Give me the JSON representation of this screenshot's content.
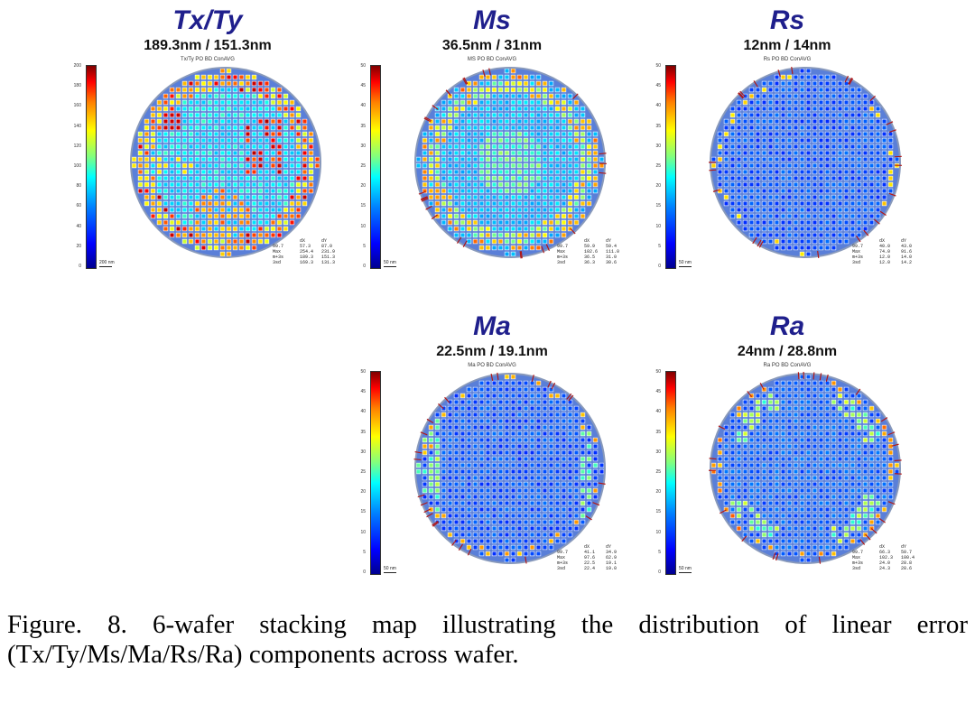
{
  "panels": [
    {
      "id": "txty",
      "title": "Tx/Ty",
      "subtitle": "189.3nm / 151.3nm",
      "header": "Tx/Ty PO BD ConAVG",
      "scale_max": 200,
      "colorbar_ticks": [
        "200",
        "180",
        "160",
        "140",
        "120",
        "100",
        "80",
        "60",
        "40",
        "20",
        "0"
      ],
      "scale_label": "200 nm",
      "stats": {
        "cols": [
          "",
          "dX",
          "dY"
        ],
        "rows": [
          [
            "99.7",
            "57.3",
            "87.0"
          ],
          [
            "Max",
            "254.4",
            "231.9"
          ],
          [
            "m+3s",
            "189.3",
            "151.3"
          ],
          [
            "3sd",
            "169.3",
            "131.3"
          ]
        ]
      }
    },
    {
      "id": "ms",
      "title": "Ms",
      "subtitle": "36.5nm / 31nm",
      "header": "MS PO BD ConAVG",
      "scale_max": 50,
      "colorbar_ticks": [
        "50",
        "45",
        "40",
        "35",
        "30",
        "25",
        "20",
        "15",
        "10",
        "5",
        "0"
      ],
      "scale_label": "50 nm",
      "stats": {
        "cols": [
          "",
          "dX",
          "dY"
        ],
        "rows": [
          [
            "99.7",
            "59.9",
            "59.4"
          ],
          [
            "Max",
            "102.6",
            "111.0"
          ],
          [
            "m+3s",
            "36.5",
            "31.0"
          ],
          [
            "3sd",
            "36.3",
            "30.6"
          ]
        ]
      }
    },
    {
      "id": "rs",
      "title": "Rs",
      "subtitle": "12nm / 14nm",
      "header": "Rs PO BD ConAVG",
      "scale_max": 50,
      "colorbar_ticks": [
        "50",
        "45",
        "40",
        "35",
        "30",
        "25",
        "20",
        "15",
        "10",
        "5",
        "0"
      ],
      "scale_label": "50 nm",
      "stats": {
        "cols": [
          "",
          "dX",
          "dY"
        ],
        "rows": [
          [
            "99.7",
            "40.0",
            "43.0"
          ],
          [
            "Max",
            "74.0",
            "91.6"
          ],
          [
            "m+3s",
            "12.0",
            "14.0"
          ],
          [
            "3sd",
            "12.0",
            "14.2"
          ]
        ]
      }
    },
    {
      "id": "ma",
      "title": "Ma",
      "subtitle": "22.5nm / 19.1nm",
      "header": "Ma PO BD ConAVG",
      "scale_max": 50,
      "colorbar_ticks": [
        "50",
        "45",
        "40",
        "35",
        "30",
        "25",
        "20",
        "15",
        "10",
        "5",
        "0"
      ],
      "scale_label": "50 nm",
      "stats": {
        "cols": [
          "",
          "dX",
          "dY"
        ],
        "rows": [
          [
            "99.7",
            "41.1",
            "34.9"
          ],
          [
            "Max",
            "97.6",
            "62.9"
          ],
          [
            "m+3s",
            "22.5",
            "19.1"
          ],
          [
            "3sd",
            "22.4",
            "19.0"
          ]
        ]
      }
    },
    {
      "id": "ra",
      "title": "Ra",
      "subtitle": "24nm / 28.8nm",
      "header": "Ra PO BD ConAVG",
      "scale_max": 50,
      "colorbar_ticks": [
        "50",
        "45",
        "40",
        "35",
        "30",
        "25",
        "20",
        "15",
        "10",
        "5",
        "0"
      ],
      "scale_label": "50 nm",
      "stats": {
        "cols": [
          "",
          "dX",
          "dY"
        ],
        "rows": [
          [
            "99.7",
            "66.3",
            "50.7"
          ],
          [
            "Max",
            "102.3",
            "100.4"
          ],
          [
            "m+3s",
            "24.0",
            "28.8"
          ],
          [
            "3sd",
            "24.3",
            "28.6"
          ]
        ]
      }
    }
  ],
  "caption": "Figure. 8. 6-wafer stacking map illustrating the distribution of linear error (Tx/Ty/Ms/Ma/Rs/Ra) components across wafer."
}
